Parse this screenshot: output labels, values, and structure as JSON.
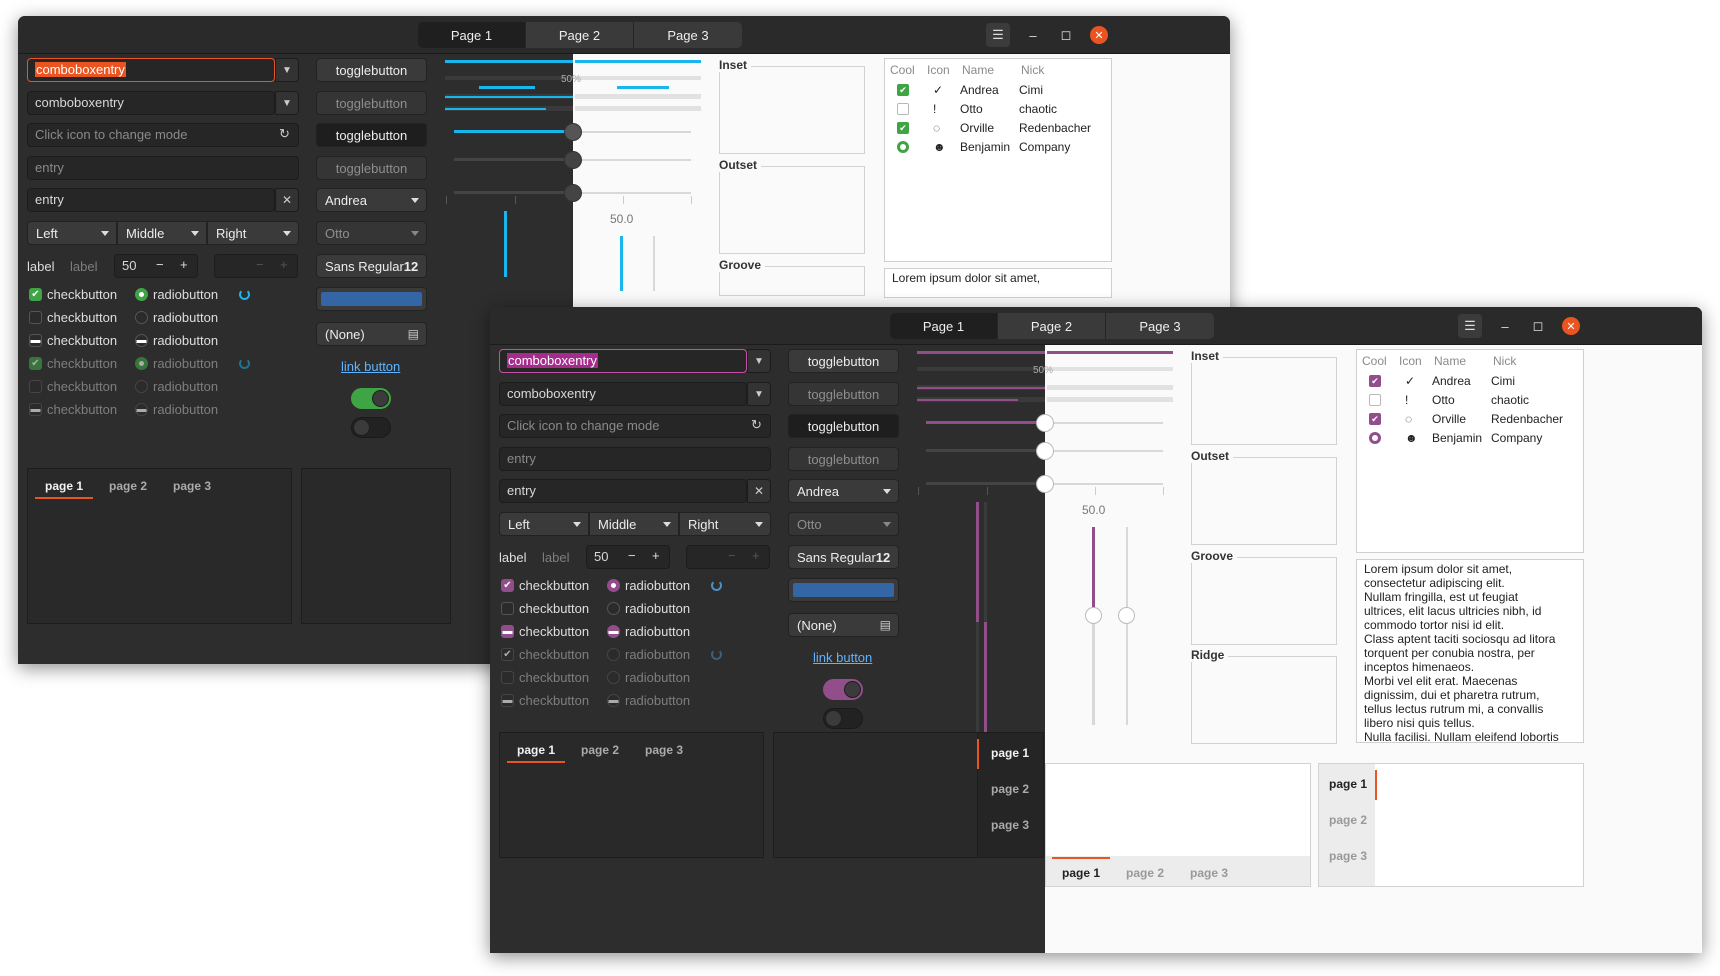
{
  "header": {
    "tabs": [
      "Page 1",
      "Page 2",
      "Page 3"
    ],
    "menu_icon": "hamburger-icon",
    "controls": [
      "minimize-icon",
      "maximize-icon",
      "close-icon"
    ]
  },
  "col1": {
    "combo1": "comboboxentry",
    "combo2": "comboboxentry",
    "mode_placeholder": "Click icon to change mode",
    "entry1": "entry",
    "entry2": "entry",
    "combos": [
      "Left",
      "Middle",
      "Right"
    ],
    "label_a": "label",
    "label_b": "label",
    "spin_value": "50"
  },
  "checks": [
    "checkbutton",
    "checkbutton",
    "checkbutton",
    "checkbutton",
    "checkbutton",
    "checkbutton"
  ],
  "radios": [
    "radiobutton",
    "radiobutton",
    "radiobutton",
    "radiobutton",
    "radiobutton",
    "radiobutton"
  ],
  "col2": {
    "toggles": [
      "togglebutton",
      "togglebutton",
      "togglebutton",
      "togglebutton"
    ],
    "combo_a": "Andrea",
    "combo_b": "Otto",
    "font_name": "Sans Regular",
    "font_size": "12",
    "file": "(None)",
    "link": "link button"
  },
  "progress_text": "50%",
  "scale_value": "50.0",
  "frames": [
    "Inset",
    "Outset",
    "Groove",
    "Ridge"
  ],
  "tree": {
    "headers": [
      "Cool",
      "Icon",
      "Name",
      "Nick"
    ],
    "rows": [
      {
        "name": "Andrea",
        "nick": "Cimi",
        "cool": true,
        "icon": "✓",
        "icon_name": "check-circle-icon"
      },
      {
        "name": "Otto",
        "nick": "chaotic",
        "cool": false,
        "icon": "!",
        "icon_name": "alert-icon"
      },
      {
        "name": "Orville",
        "nick": "Redenbacher",
        "cool": true,
        "icon": "◌",
        "icon_name": "refresh-icon"
      },
      {
        "name": "Benjamin",
        "nick": "Company",
        "cool": false,
        "icon": "☻",
        "icon_name": "face-icon"
      }
    ]
  },
  "lorem": "Lorem ipsum dolor sit amet,\nconsectetur adipiscing elit.\nNullam fringilla, est ut feugiat\nultrices, elit lacus ultricies nibh, id\ncommodo tortor nisi id elit.\nClass aptent taciti sociosqu ad litora\ntorquent per conubia nostra, per\ninceptos himenaeos.\nMorbi vel elit erat. Maecenas\ndignissim, dui et pharetra rutrum,\ntellus lectus rutrum mi, a convallis\nlibero nisi quis tellus.\nNulla facilisi. Nullam eleifend lobortis",
  "lorem_short": "Lorem ipsum dolor sit amet,",
  "notebook": [
    "page 1",
    "page 2",
    "page 3"
  ],
  "colors": {
    "accent": "#e95420",
    "green": "#3fa544",
    "purple": "#924d8b",
    "blue": "#19b6ee",
    "color_button": "#3465a4"
  }
}
